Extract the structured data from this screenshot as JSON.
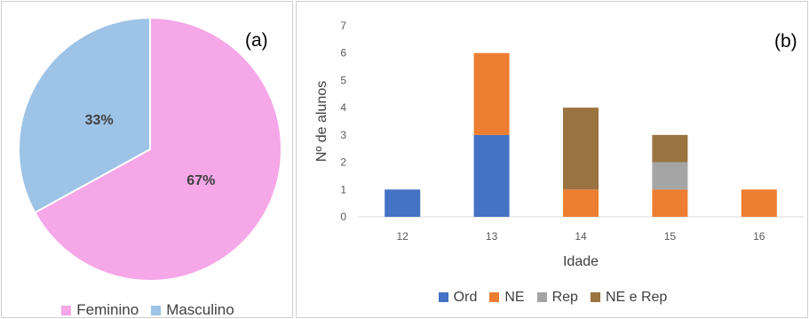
{
  "chart_data": [
    {
      "type": "pie",
      "panel_label": "(a)",
      "slices": [
        {
          "name": "Feminino",
          "value": 67,
          "label": "67%",
          "color": "#f5a7e8"
        },
        {
          "name": "Masculino",
          "value": 33,
          "label": "33%",
          "color": "#9dc3e6"
        }
      ],
      "legend": [
        "Feminino",
        "Masculino"
      ],
      "legend_position": "bottom"
    },
    {
      "type": "bar",
      "stacked": true,
      "panel_label": "(b)",
      "categories": [
        "12",
        "13",
        "14",
        "15",
        "16"
      ],
      "series": [
        {
          "name": "Ord",
          "values": [
            1,
            3,
            0,
            0,
            0
          ],
          "color": "#4472c4"
        },
        {
          "name": "NE",
          "values": [
            0,
            3,
            1,
            1,
            1
          ],
          "color": "#ed7d31"
        },
        {
          "name": "Rep",
          "values": [
            0,
            0,
            0,
            1,
            0
          ],
          "color": "#a5a5a5"
        },
        {
          "name": "NE e Rep",
          "values": [
            0,
            0,
            3,
            1,
            0
          ],
          "color": "#997340"
        }
      ],
      "xlabel": "Idade",
      "ylabel": "Nº de alunos",
      "ylim": [
        0,
        7
      ],
      "yticks": [
        "0",
        "1",
        "2",
        "3",
        "4",
        "5",
        "6",
        "7"
      ],
      "grid": false,
      "legend_position": "bottom"
    }
  ]
}
